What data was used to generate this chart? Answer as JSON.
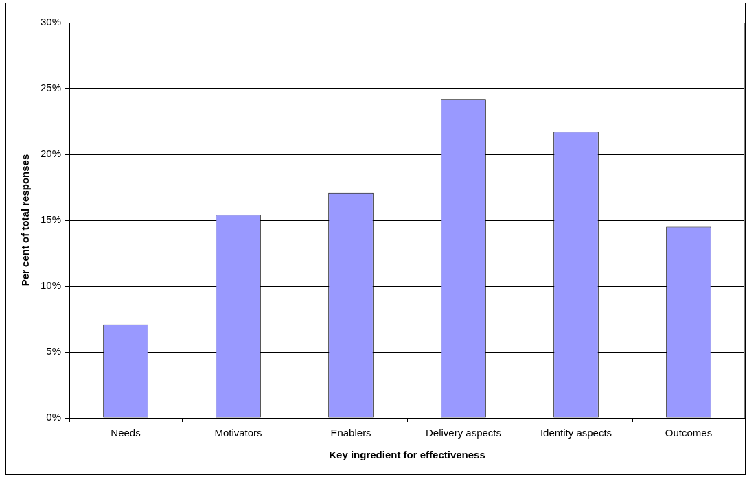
{
  "chart_data": {
    "type": "bar",
    "xlabel": "Key ingredient for effectiveness",
    "ylabel": "Per cent of total responses",
    "categories": [
      "Needs",
      "Motivators",
      "Enablers",
      "Delivery aspects",
      "Identity aspects",
      "Outcomes"
    ],
    "values": [
      7.1,
      15.4,
      17.1,
      24.2,
      21.7,
      14.5
    ],
    "color": "#9999ff",
    "ylim": [
      0,
      30
    ],
    "yticks": [
      {
        "value": 0,
        "label": "0%"
      },
      {
        "value": 5,
        "label": "5%"
      },
      {
        "value": 10,
        "label": "10%"
      },
      {
        "value": 15,
        "label": "15%"
      },
      {
        "value": 20,
        "label": "20%"
      },
      {
        "value": 25,
        "label": "25%"
      },
      {
        "value": 30,
        "label": "30%"
      }
    ],
    "grid": "y",
    "legend": false
  }
}
